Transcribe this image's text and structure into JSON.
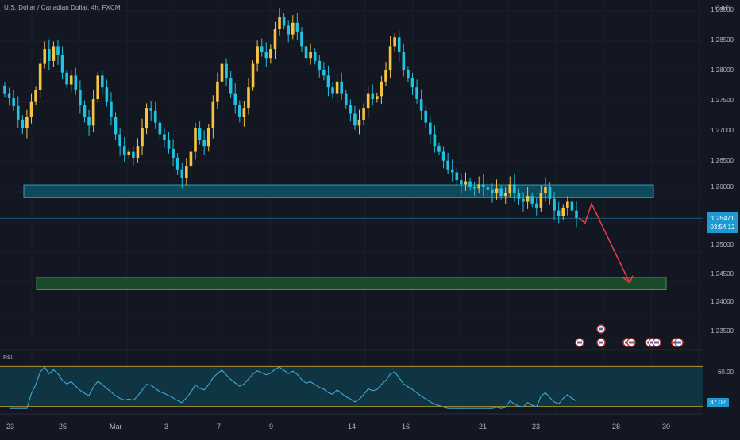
{
  "header": {
    "title": "U.S. Dollar / Canadian Dollar, 4h, FXCM",
    "currency": "CAD"
  },
  "price_axis": {
    "labels": [
      "1.29000",
      "1.28500",
      "1.28000",
      "1.27500",
      "1.27000",
      "1.26500",
      "1.26000",
      "1.25500",
      "1.25000",
      "1.24500",
      "1.24000",
      "1.23500"
    ]
  },
  "current_price": {
    "value": "1.25471",
    "countdown": "03:54:12"
  },
  "rsi": {
    "title": "RSI",
    "level_label": "60.00",
    "value": "37.02",
    "upper": 70,
    "lower": 30
  },
  "date_axis": {
    "labels": [
      "23",
      "25",
      "Mar",
      "3",
      "7",
      "9",
      "14",
      "16",
      "21",
      "23",
      "28",
      "30"
    ]
  },
  "colors": {
    "background": "#131722",
    "candle_up": "#f5c242",
    "candle_down": "#1ec3e0",
    "resistance_zone": "#0f4a5c",
    "support_zone": "#1a4a2a",
    "arrow": "#e8404a",
    "rsi_line": "#3fa9d8",
    "rsi_fill": "#0f3a48"
  },
  "chart_data": {
    "type": "candlestick",
    "symbol": "USDCAD",
    "timeframe": "4h",
    "ylim": [
      1.2325,
      1.2925
    ],
    "zones": [
      {
        "kind": "resistance",
        "from": 1.2582,
        "to": 1.2604
      },
      {
        "kind": "support",
        "from": 1.2425,
        "to": 1.2446
      }
    ],
    "current_price": 1.25471,
    "projection": [
      1.2547,
      1.2539,
      1.2572,
      1.2437
    ],
    "closes": [
      1.276,
      1.2752,
      1.2738,
      1.2715,
      1.27,
      1.272,
      1.2745,
      1.2765,
      1.281,
      1.2835,
      1.2815,
      1.284,
      1.2825,
      1.2795,
      1.2775,
      1.279,
      1.2765,
      1.274,
      1.272,
      1.2705,
      1.275,
      1.279,
      1.277,
      1.2745,
      1.272,
      1.269,
      1.267,
      1.2655,
      1.266,
      1.265,
      1.267,
      1.27,
      1.2735,
      1.273,
      1.271,
      1.269,
      1.268,
      1.2665,
      1.265,
      1.263,
      1.2615,
      1.2635,
      1.266,
      1.27,
      1.268,
      1.267,
      1.27,
      1.2745,
      1.278,
      1.281,
      1.2785,
      1.276,
      1.274,
      1.272,
      1.2735,
      1.277,
      1.281,
      1.284,
      1.283,
      1.282,
      1.2835,
      1.287,
      1.289,
      1.2875,
      1.286,
      1.288,
      1.2865,
      1.284,
      1.282,
      1.283,
      1.2815,
      1.28,
      1.279,
      1.277,
      1.276,
      1.278,
      1.276,
      1.274,
      1.2725,
      1.2705,
      1.2715,
      1.2735,
      1.276,
      1.275,
      1.2755,
      1.278,
      1.28,
      1.284,
      1.2855,
      1.283,
      1.28,
      1.2785,
      1.277,
      1.275,
      1.273,
      1.271,
      1.269,
      1.267,
      1.266,
      1.2645,
      1.263,
      1.2625,
      1.2612,
      1.2605,
      1.261,
      1.26,
      1.2598,
      1.2605,
      1.26,
      1.2595,
      1.259,
      1.2598,
      1.2585,
      1.259,
      1.2605,
      1.259,
      1.258,
      1.2575,
      1.2585,
      1.2572,
      1.2565,
      1.259,
      1.26,
      1.258,
      1.256,
      1.255,
      1.2565,
      1.2575,
      1.256,
      1.2547
    ]
  }
}
